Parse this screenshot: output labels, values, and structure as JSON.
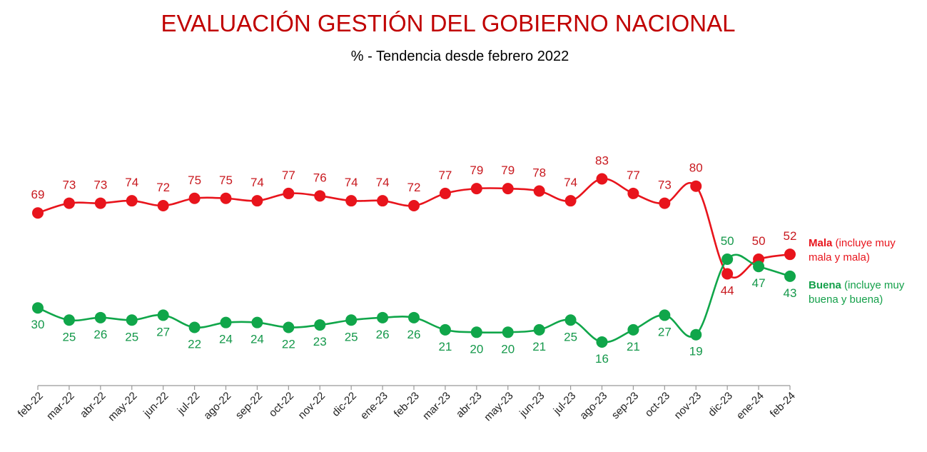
{
  "title": "EVALUACIÓN GESTIÓN DEL GOBIERNO NACIONAL",
  "subtitle": "% - Tendencia desde febrero 2022",
  "colors": {
    "mala": "#e8141c",
    "mala_label": "#c8181e",
    "buena": "#10a64a",
    "buena_label": "#14984a",
    "axis": "#999999"
  },
  "legend": {
    "mala": {
      "bold": "Mala",
      "rest1": " (incluye muy",
      "rest2": "mala y mala)"
    },
    "buena": {
      "bold": "Buena",
      "rest1": " (incluye muy",
      "rest2": "buena y buena)"
    }
  },
  "chart_data": {
    "type": "line",
    "title": "EVALUACIÓN GESTIÓN DEL GOBIERNO NACIONAL",
    "subtitle": "% - Tendencia desde febrero 2022",
    "xlabel": "",
    "ylabel": "",
    "grid": false,
    "legend_position": "right",
    "categories": [
      "feb-22",
      "mar-22",
      "abr-22",
      "may-22",
      "jun-22",
      "jul-22",
      "ago-22",
      "sep-22",
      "oct-22",
      "nov-22",
      "dic-22",
      "ene-23",
      "feb-23",
      "mar-23",
      "abr-23",
      "may-23",
      "jun-23",
      "jul-23",
      "ago-23",
      "sep-23",
      "oct-23",
      "nov-23",
      "dic-23",
      "ene-24",
      "feb-24"
    ],
    "series": [
      {
        "name": "Mala (incluye muy mala y mala)",
        "values": [
          69,
          73,
          73,
          74,
          72,
          75,
          75,
          74,
          77,
          76,
          74,
          74,
          72,
          77,
          79,
          79,
          78,
          74,
          83,
          77,
          73,
          80,
          44,
          50,
          52
        ]
      },
      {
        "name": "Buena (incluye muy buena y buena)",
        "values": [
          30,
          25,
          26,
          25,
          27,
          22,
          24,
          24,
          22,
          23,
          25,
          26,
          26,
          21,
          20,
          20,
          21,
          25,
          16,
          21,
          27,
          19,
          50,
          47,
          43
        ]
      }
    ]
  }
}
